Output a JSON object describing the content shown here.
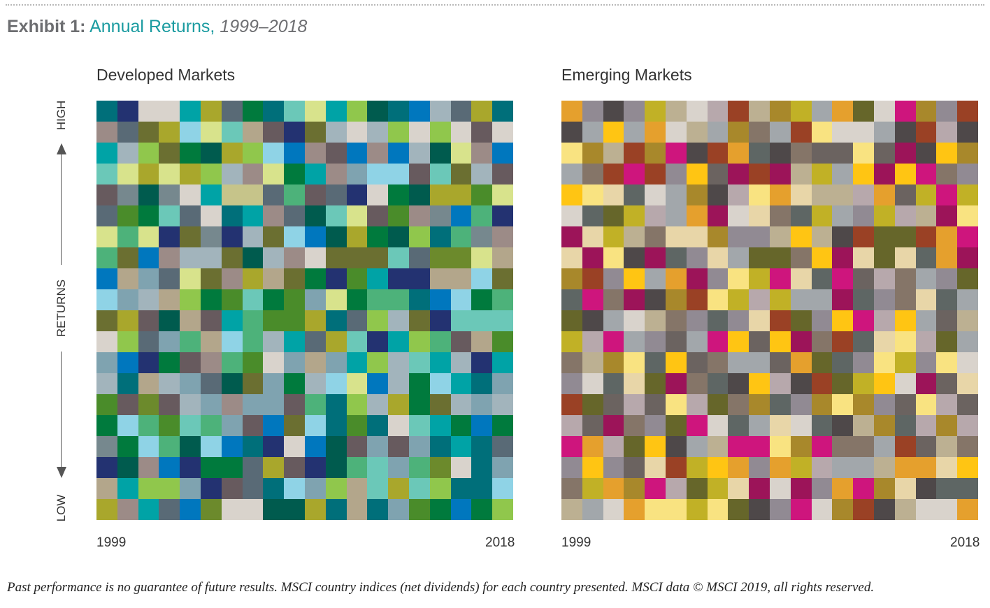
{
  "exhibit": {
    "label": "Exhibit 1:",
    "title": "Annual Returns,",
    "years": "1999–2018"
  },
  "axis": {
    "high": "HIGH",
    "middle": "RETURNS",
    "low": "LOW"
  },
  "footnote": "Past performance is no guarantee of future results. MSCI country indices (net dividends) for each country presented. MSCI data © MSCI 2019, all rights reserved.",
  "chart_data": [
    {
      "type": "heatmap",
      "title": "Developed Markets",
      "x_start_label": "1999",
      "x_end_label": "2018",
      "rows": 20,
      "columns": 20,
      "palette": [
        "#006f7a",
        "#233271",
        "#d9d3cc",
        "#00a3a6",
        "#a9a72c",
        "#596a76",
        "#007a3d",
        "#6bc8b8",
        "#d8e38c",
        "#90c74c",
        "#0077be",
        "#a2b4bc",
        "#005b4e",
        "#4a8c2a",
        "#8fd3e6",
        "#9c8b87",
        "#6b6f31",
        "#675a5e",
        "#c6c48a",
        "#7fa3b0",
        "#b3a68b",
        "#76888e",
        "#4db27a",
        "#6c8a2c"
      ],
      "cells": [
        [
          0,
          1,
          2,
          2,
          3,
          4,
          5,
          6,
          0,
          7,
          8,
          3,
          9,
          12,
          0,
          10,
          11,
          5,
          4,
          0
        ],
        [
          15,
          5,
          16,
          4,
          14,
          8,
          7,
          20,
          17,
          1,
          16,
          11,
          2,
          11,
          9,
          2,
          9,
          2,
          17,
          2
        ],
        [
          3,
          11,
          9,
          16,
          6,
          12,
          4,
          9,
          14,
          10,
          15,
          17,
          10,
          15,
          10,
          11,
          12,
          8,
          15,
          10
        ],
        [
          7,
          8,
          4,
          8,
          4,
          9,
          11,
          15,
          8,
          6,
          3,
          15,
          19,
          14,
          14,
          17,
          7,
          16,
          11,
          17
        ],
        [
          17,
          21,
          12,
          21,
          2,
          3,
          18,
          18,
          5,
          22,
          17,
          5,
          1,
          2,
          6,
          12,
          4,
          4,
          13,
          8
        ],
        [
          5,
          13,
          6,
          7,
          5,
          2,
          0,
          3,
          15,
          5,
          12,
          7,
          8,
          17,
          13,
          15,
          21,
          10,
          22,
          1
        ],
        [
          8,
          22,
          8,
          1,
          16,
          21,
          1,
          11,
          16,
          14,
          10,
          12,
          4,
          6,
          12,
          9,
          0,
          22,
          21,
          15
        ],
        [
          22,
          16,
          10,
          15,
          11,
          11,
          16,
          12,
          11,
          15,
          2,
          16,
          16,
          16,
          7,
          5,
          23,
          23,
          8,
          20
        ],
        [
          10,
          20,
          19,
          5,
          8,
          16,
          15,
          4,
          20,
          16,
          6,
          1,
          13,
          3,
          1,
          1,
          20,
          20,
          14,
          16
        ],
        [
          14,
          19,
          11,
          20,
          9,
          6,
          13,
          7,
          6,
          13,
          19,
          8,
          6,
          22,
          22,
          0,
          10,
          14,
          6,
          22
        ],
        [
          16,
          4,
          17,
          12,
          20,
          17,
          3,
          22,
          13,
          13,
          4,
          0,
          5,
          9,
          11,
          16,
          1,
          7,
          7,
          7
        ],
        [
          2,
          9,
          5,
          19,
          22,
          20,
          14,
          22,
          11,
          3,
          5,
          4,
          7,
          1,
          3,
          9,
          22,
          17,
          20,
          13
        ],
        [
          19,
          10,
          1,
          6,
          17,
          15,
          22,
          13,
          2,
          19,
          20,
          19,
          3,
          9,
          11,
          7,
          3,
          11,
          1,
          3
        ],
        [
          11,
          0,
          20,
          11,
          19,
          5,
          12,
          16,
          19,
          6,
          11,
          14,
          8,
          10,
          11,
          6,
          14,
          3,
          0,
          19
        ],
        [
          13,
          17,
          23,
          17,
          11,
          19,
          15,
          19,
          19,
          17,
          22,
          0,
          9,
          11,
          4,
          6,
          16,
          11,
          19,
          11
        ],
        [
          6,
          14,
          22,
          13,
          7,
          22,
          19,
          17,
          10,
          16,
          14,
          0,
          13,
          0,
          2,
          7,
          3,
          6,
          10,
          6
        ],
        [
          21,
          6,
          14,
          22,
          12,
          14,
          10,
          0,
          1,
          2,
          10,
          12,
          17,
          19,
          17,
          19,
          0,
          3,
          0,
          5
        ],
        [
          1,
          12,
          15,
          10,
          1,
          6,
          6,
          5,
          4,
          17,
          1,
          12,
          22,
          7,
          19,
          22,
          23,
          2,
          0,
          19
        ],
        [
          20,
          3,
          9,
          9,
          19,
          1,
          17,
          5,
          0,
          14,
          19,
          9,
          20,
          7,
          4,
          7,
          9,
          0,
          0,
          14
        ],
        [
          4,
          15,
          3,
          5,
          10,
          23,
          2,
          2,
          12,
          12,
          4,
          0,
          20,
          0,
          19,
          13,
          6,
          10,
          6,
          9
        ]
      ]
    },
    {
      "type": "heatmap",
      "title": "Emerging Markets",
      "x_start_label": "1999",
      "x_end_label": "2018",
      "rows": 20,
      "columns": 20,
      "palette": [
        "#e5a02d",
        "#918a93",
        "#4e4849",
        "#c1b126",
        "#bcb092",
        "#d9d3cc",
        "#b7a8ac",
        "#9a4125",
        "#a8882b",
        "#ce157d",
        "#a2a7ab",
        "#66662a",
        "#ffc513",
        "#f9e381",
        "#857568",
        "#6b6360",
        "#e8d6a8",
        "#5e6664",
        "#9c1459"
      ],
      "cells": [
        [
          0,
          1,
          2,
          1,
          3,
          4,
          5,
          6,
          7,
          4,
          8,
          3,
          10,
          0,
          11,
          5,
          9,
          8,
          1,
          7
        ],
        [
          2,
          10,
          12,
          10,
          0,
          5,
          4,
          10,
          8,
          14,
          10,
          7,
          13,
          5,
          5,
          10,
          2,
          7,
          6,
          2
        ],
        [
          13,
          8,
          4,
          7,
          8,
          9,
          2,
          7,
          0,
          17,
          2,
          14,
          15,
          15,
          13,
          15,
          18,
          2,
          12,
          8
        ],
        [
          10,
          14,
          7,
          9,
          7,
          1,
          12,
          15,
          18,
          7,
          18,
          4,
          3,
          10,
          12,
          18,
          12,
          9,
          14,
          1
        ],
        [
          12,
          13,
          16,
          17,
          5,
          10,
          8,
          2,
          6,
          13,
          0,
          16,
          4,
          4,
          6,
          0,
          15,
          3,
          9,
          3
        ],
        [
          5,
          17,
          11,
          3,
          6,
          10,
          0,
          18,
          5,
          16,
          14,
          17,
          3,
          10,
          1,
          3,
          6,
          4,
          18,
          13
        ],
        [
          18,
          16,
          3,
          4,
          14,
          16,
          16,
          8,
          1,
          1,
          4,
          12,
          4,
          2,
          7,
          11,
          11,
          7,
          0,
          9
        ],
        [
          16,
          18,
          13,
          2,
          18,
          17,
          1,
          16,
          10,
          11,
          11,
          14,
          12,
          18,
          16,
          11,
          16,
          17,
          0,
          18
        ],
        [
          8,
          7,
          1,
          12,
          10,
          0,
          18,
          1,
          13,
          3,
          9,
          16,
          17,
          9,
          15,
          6,
          14,
          10,
          1,
          11
        ],
        [
          17,
          9,
          14,
          18,
          2,
          8,
          7,
          13,
          3,
          6,
          3,
          10,
          10,
          18,
          17,
          1,
          14,
          16,
          17,
          10
        ],
        [
          11,
          2,
          10,
          5,
          4,
          14,
          1,
          17,
          1,
          16,
          7,
          11,
          1,
          12,
          9,
          6,
          12,
          10,
          15,
          4
        ],
        [
          3,
          6,
          9,
          10,
          1,
          15,
          10,
          9,
          12,
          15,
          12,
          18,
          14,
          7,
          17,
          16,
          13,
          6,
          11,
          10
        ],
        [
          14,
          4,
          8,
          13,
          17,
          12,
          15,
          14,
          10,
          10,
          15,
          0,
          11,
          17,
          1,
          13,
          3,
          1,
          13,
          5
        ],
        [
          1,
          5,
          17,
          16,
          11,
          18,
          14,
          17,
          2,
          12,
          6,
          2,
          7,
          11,
          3,
          12,
          5,
          18,
          15,
          16
        ],
        [
          7,
          11,
          15,
          6,
          15,
          13,
          6,
          11,
          14,
          8,
          17,
          1,
          8,
          13,
          8,
          1,
          15,
          13,
          6,
          15
        ],
        [
          6,
          15,
          18,
          14,
          1,
          11,
          9,
          5,
          17,
          10,
          16,
          5,
          17,
          2,
          4,
          8,
          17,
          6,
          8,
          6
        ],
        [
          9,
          0,
          6,
          11,
          12,
          2,
          10,
          4,
          9,
          9,
          13,
          8,
          9,
          14,
          14,
          10,
          7,
          15,
          4,
          14
        ],
        [
          1,
          12,
          1,
          15,
          16,
          7,
          3,
          12,
          0,
          1,
          0,
          3,
          6,
          10,
          10,
          4,
          0,
          0,
          16,
          12
        ],
        [
          14,
          3,
          0,
          8,
          9,
          6,
          11,
          3,
          16,
          18,
          5,
          18,
          1,
          0,
          9,
          8,
          16,
          2,
          17,
          17
        ],
        [
          4,
          10,
          5,
          0,
          13,
          13,
          3,
          13,
          11,
          2,
          1,
          9,
          5,
          8,
          7,
          2,
          4,
          5,
          5,
          0
        ]
      ]
    }
  ]
}
